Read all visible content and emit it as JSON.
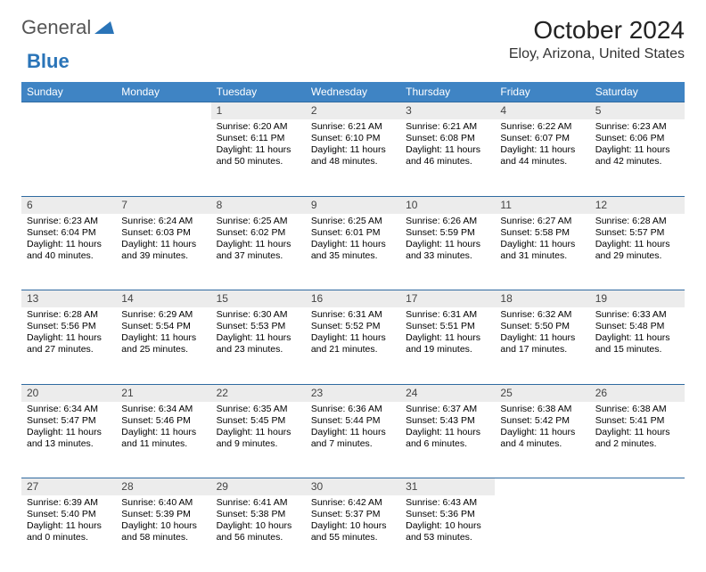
{
  "logo": {
    "part1": "General",
    "part2": "Blue"
  },
  "title": "October 2024",
  "location": "Eloy, Arizona, United States",
  "colors": {
    "header_bg": "#3f84c4",
    "header_fg": "#ffffff",
    "daynum_bg": "#ececec",
    "rule": "#2f6aa0"
  },
  "day_headers": [
    "Sunday",
    "Monday",
    "Tuesday",
    "Wednesday",
    "Thursday",
    "Friday",
    "Saturday"
  ],
  "weeks": [
    [
      {
        "n": "",
        "blank": true
      },
      {
        "n": "",
        "blank": true
      },
      {
        "n": "1",
        "sr": "Sunrise: 6:20 AM",
        "ss": "Sunset: 6:11 PM",
        "dl1": "Daylight: 11 hours",
        "dl2": "and 50 minutes."
      },
      {
        "n": "2",
        "sr": "Sunrise: 6:21 AM",
        "ss": "Sunset: 6:10 PM",
        "dl1": "Daylight: 11 hours",
        "dl2": "and 48 minutes."
      },
      {
        "n": "3",
        "sr": "Sunrise: 6:21 AM",
        "ss": "Sunset: 6:08 PM",
        "dl1": "Daylight: 11 hours",
        "dl2": "and 46 minutes."
      },
      {
        "n": "4",
        "sr": "Sunrise: 6:22 AM",
        "ss": "Sunset: 6:07 PM",
        "dl1": "Daylight: 11 hours",
        "dl2": "and 44 minutes."
      },
      {
        "n": "5",
        "sr": "Sunrise: 6:23 AM",
        "ss": "Sunset: 6:06 PM",
        "dl1": "Daylight: 11 hours",
        "dl2": "and 42 minutes."
      }
    ],
    [
      {
        "n": "6",
        "sr": "Sunrise: 6:23 AM",
        "ss": "Sunset: 6:04 PM",
        "dl1": "Daylight: 11 hours",
        "dl2": "and 40 minutes."
      },
      {
        "n": "7",
        "sr": "Sunrise: 6:24 AM",
        "ss": "Sunset: 6:03 PM",
        "dl1": "Daylight: 11 hours",
        "dl2": "and 39 minutes."
      },
      {
        "n": "8",
        "sr": "Sunrise: 6:25 AM",
        "ss": "Sunset: 6:02 PM",
        "dl1": "Daylight: 11 hours",
        "dl2": "and 37 minutes."
      },
      {
        "n": "9",
        "sr": "Sunrise: 6:25 AM",
        "ss": "Sunset: 6:01 PM",
        "dl1": "Daylight: 11 hours",
        "dl2": "and 35 minutes."
      },
      {
        "n": "10",
        "sr": "Sunrise: 6:26 AM",
        "ss": "Sunset: 5:59 PM",
        "dl1": "Daylight: 11 hours",
        "dl2": "and 33 minutes."
      },
      {
        "n": "11",
        "sr": "Sunrise: 6:27 AM",
        "ss": "Sunset: 5:58 PM",
        "dl1": "Daylight: 11 hours",
        "dl2": "and 31 minutes."
      },
      {
        "n": "12",
        "sr": "Sunrise: 6:28 AM",
        "ss": "Sunset: 5:57 PM",
        "dl1": "Daylight: 11 hours",
        "dl2": "and 29 minutes."
      }
    ],
    [
      {
        "n": "13",
        "sr": "Sunrise: 6:28 AM",
        "ss": "Sunset: 5:56 PM",
        "dl1": "Daylight: 11 hours",
        "dl2": "and 27 minutes."
      },
      {
        "n": "14",
        "sr": "Sunrise: 6:29 AM",
        "ss": "Sunset: 5:54 PM",
        "dl1": "Daylight: 11 hours",
        "dl2": "and 25 minutes."
      },
      {
        "n": "15",
        "sr": "Sunrise: 6:30 AM",
        "ss": "Sunset: 5:53 PM",
        "dl1": "Daylight: 11 hours",
        "dl2": "and 23 minutes."
      },
      {
        "n": "16",
        "sr": "Sunrise: 6:31 AM",
        "ss": "Sunset: 5:52 PM",
        "dl1": "Daylight: 11 hours",
        "dl2": "and 21 minutes."
      },
      {
        "n": "17",
        "sr": "Sunrise: 6:31 AM",
        "ss": "Sunset: 5:51 PM",
        "dl1": "Daylight: 11 hours",
        "dl2": "and 19 minutes."
      },
      {
        "n": "18",
        "sr": "Sunrise: 6:32 AM",
        "ss": "Sunset: 5:50 PM",
        "dl1": "Daylight: 11 hours",
        "dl2": "and 17 minutes."
      },
      {
        "n": "19",
        "sr": "Sunrise: 6:33 AM",
        "ss": "Sunset: 5:48 PM",
        "dl1": "Daylight: 11 hours",
        "dl2": "and 15 minutes."
      }
    ],
    [
      {
        "n": "20",
        "sr": "Sunrise: 6:34 AM",
        "ss": "Sunset: 5:47 PM",
        "dl1": "Daylight: 11 hours",
        "dl2": "and 13 minutes."
      },
      {
        "n": "21",
        "sr": "Sunrise: 6:34 AM",
        "ss": "Sunset: 5:46 PM",
        "dl1": "Daylight: 11 hours",
        "dl2": "and 11 minutes."
      },
      {
        "n": "22",
        "sr": "Sunrise: 6:35 AM",
        "ss": "Sunset: 5:45 PM",
        "dl1": "Daylight: 11 hours",
        "dl2": "and 9 minutes."
      },
      {
        "n": "23",
        "sr": "Sunrise: 6:36 AM",
        "ss": "Sunset: 5:44 PM",
        "dl1": "Daylight: 11 hours",
        "dl2": "and 7 minutes."
      },
      {
        "n": "24",
        "sr": "Sunrise: 6:37 AM",
        "ss": "Sunset: 5:43 PM",
        "dl1": "Daylight: 11 hours",
        "dl2": "and 6 minutes."
      },
      {
        "n": "25",
        "sr": "Sunrise: 6:38 AM",
        "ss": "Sunset: 5:42 PM",
        "dl1": "Daylight: 11 hours",
        "dl2": "and 4 minutes."
      },
      {
        "n": "26",
        "sr": "Sunrise: 6:38 AM",
        "ss": "Sunset: 5:41 PM",
        "dl1": "Daylight: 11 hours",
        "dl2": "and 2 minutes."
      }
    ],
    [
      {
        "n": "27",
        "sr": "Sunrise: 6:39 AM",
        "ss": "Sunset: 5:40 PM",
        "dl1": "Daylight: 11 hours",
        "dl2": "and 0 minutes."
      },
      {
        "n": "28",
        "sr": "Sunrise: 6:40 AM",
        "ss": "Sunset: 5:39 PM",
        "dl1": "Daylight: 10 hours",
        "dl2": "and 58 minutes."
      },
      {
        "n": "29",
        "sr": "Sunrise: 6:41 AM",
        "ss": "Sunset: 5:38 PM",
        "dl1": "Daylight: 10 hours",
        "dl2": "and 56 minutes."
      },
      {
        "n": "30",
        "sr": "Sunrise: 6:42 AM",
        "ss": "Sunset: 5:37 PM",
        "dl1": "Daylight: 10 hours",
        "dl2": "and 55 minutes."
      },
      {
        "n": "31",
        "sr": "Sunrise: 6:43 AM",
        "ss": "Sunset: 5:36 PM",
        "dl1": "Daylight: 10 hours",
        "dl2": "and 53 minutes."
      },
      {
        "n": "",
        "blank": true
      },
      {
        "n": "",
        "blank": true
      }
    ]
  ]
}
